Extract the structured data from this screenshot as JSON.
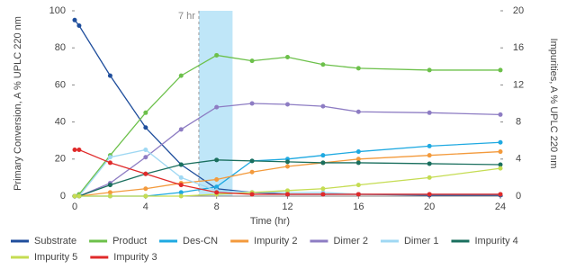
{
  "chart_data": {
    "type": "line",
    "x_label": "Time (hr)",
    "y_label": "Primary Conversion, A % UPLC 220 nm",
    "y2_label": "Impurities, A % UPLC 220 nm",
    "x": [
      0,
      0.25,
      2,
      4,
      6,
      8,
      10,
      12,
      14,
      16,
      20,
      24
    ],
    "xlim": [
      0,
      24
    ],
    "xticks": [
      0,
      4,
      8,
      12,
      16,
      20,
      24
    ],
    "ylim": [
      0,
      100
    ],
    "yticks": [
      0,
      20,
      40,
      60,
      80,
      100
    ],
    "y2lim": [
      0,
      20
    ],
    "y2ticks": [
      0,
      4,
      8,
      12,
      16,
      20
    ],
    "highlight": {
      "x": [
        7,
        8.9
      ],
      "color": "#bfe6f8"
    },
    "annotation": {
      "text": "7 hr",
      "x": 7
    },
    "series": [
      {
        "name": "Substrate",
        "color": "#1f4e9c",
        "values": [
          95,
          92,
          65,
          37,
          17,
          4,
          2,
          1,
          1,
          1,
          0.5,
          0.5
        ]
      },
      {
        "name": "Product",
        "color": "#6cc04a",
        "values": [
          0,
          1,
          22,
          45,
          65,
          76,
          73,
          75,
          71,
          69,
          68,
          68
        ]
      },
      {
        "name": "Des-CN",
        "color": "#1ea9e1",
        "axis": "y2",
        "values": [
          0,
          0,
          0,
          0,
          0.4,
          1,
          3.8,
          4,
          4.4,
          4.8,
          5.4,
          5.8
        ]
      },
      {
        "name": "Impurity 2",
        "color": "#f39a3c",
        "axis": "y2",
        "values": [
          0,
          0,
          0.4,
          0.8,
          1.4,
          1.8,
          2.6,
          3.2,
          3.6,
          4,
          4.4,
          4.8
        ]
      },
      {
        "name": "Dimer 2",
        "color": "#8d7cc3",
        "axis": "y2",
        "values": [
          0,
          0,
          1.4,
          4.2,
          7.2,
          9.6,
          10,
          9.9,
          9.7,
          9.1,
          9,
          8.8
        ]
      },
      {
        "name": "Dimer 1",
        "color": "#9fd8f3",
        "axis": "y2",
        "values": [
          0,
          0,
          4.2,
          5,
          2,
          0.6,
          0.4,
          0.4,
          0.4,
          0.2,
          0.2,
          0.2
        ]
      },
      {
        "name": "Impurity 4",
        "color": "#1a6f5e",
        "axis": "y2",
        "values": [
          0,
          0,
          1.2,
          2.4,
          3.4,
          3.9,
          3.8,
          3.7,
          3.6,
          3.6,
          3.5,
          3.4
        ]
      },
      {
        "name": "Impurity 5",
        "color": "#c5dc52",
        "axis": "y2",
        "values": [
          0,
          0,
          0,
          0,
          0,
          0.2,
          0.4,
          0.6,
          0.8,
          1.2,
          2,
          3
        ]
      },
      {
        "name": "Impurity 3",
        "color": "#e02a2a",
        "axis": "y2",
        "values": [
          5,
          5,
          3.6,
          2.4,
          1.2,
          0.4,
          0.2,
          0.2,
          0.2,
          0.2,
          0.2,
          0.2
        ]
      }
    ]
  }
}
